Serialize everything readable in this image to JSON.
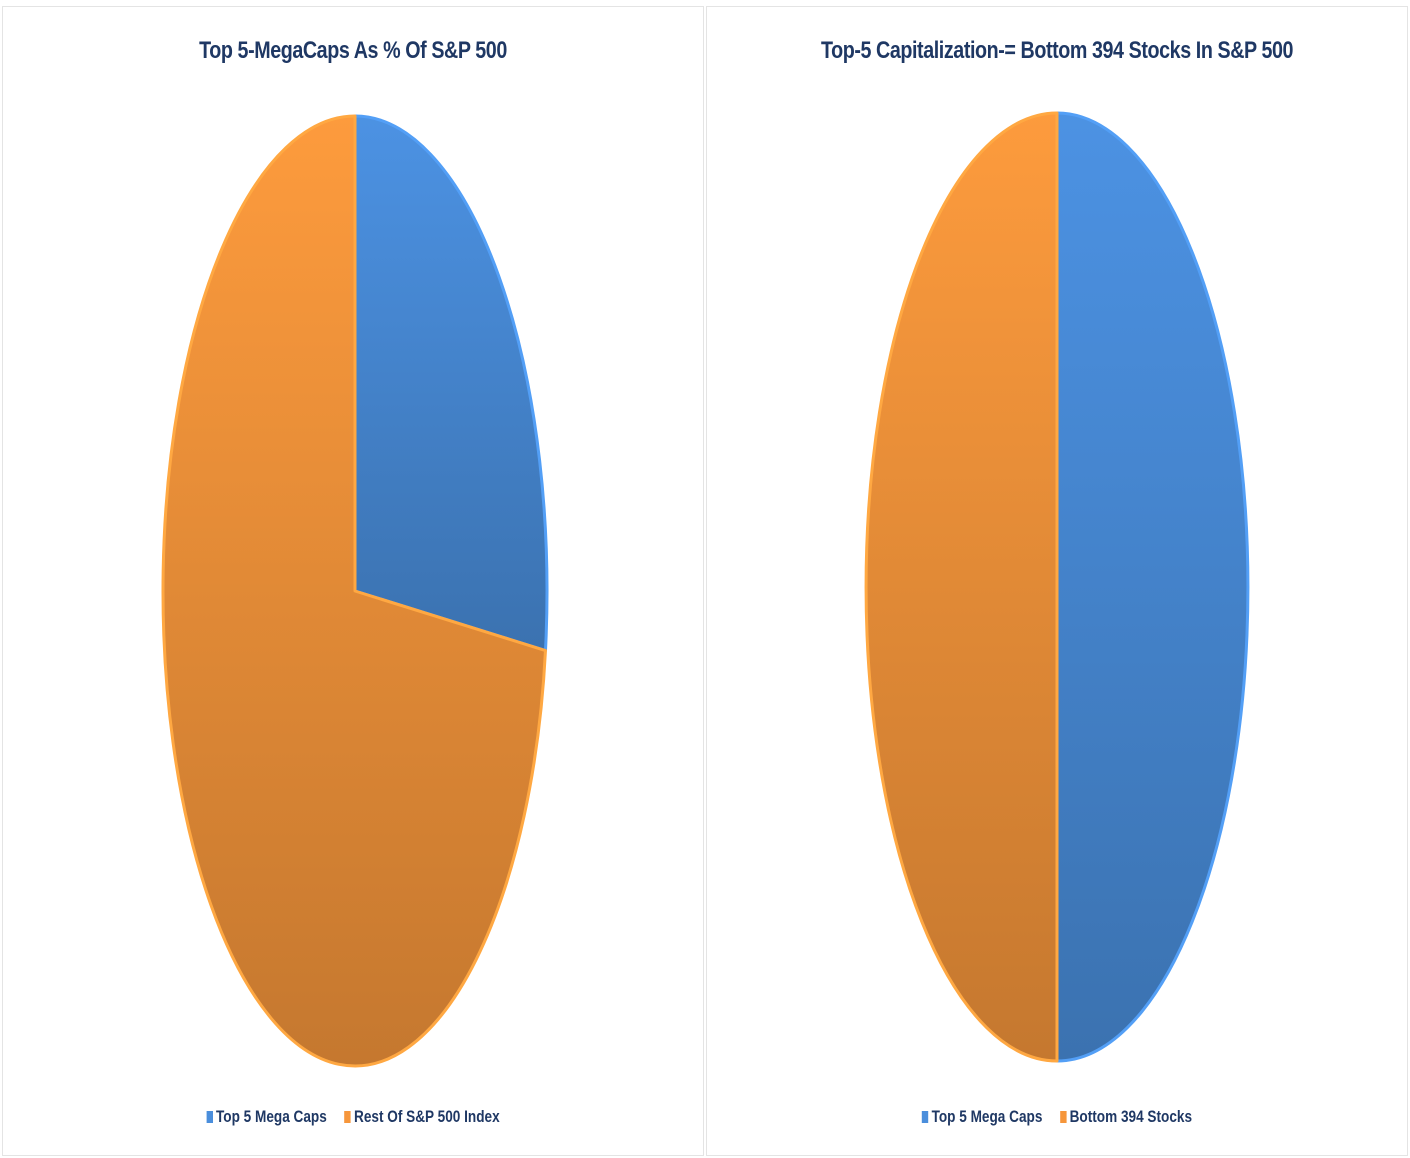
{
  "chart_data": [
    {
      "type": "pie",
      "title": "Top 5-MegaCaps As % Of S&P 500",
      "series": [
        {
          "name": "Top 5 Mega Caps",
          "value": 27,
          "color": "#4a8edc"
        },
        {
          "name": "Rest Of S&P 500 Index",
          "value": 73,
          "color": "#f6963b"
        }
      ],
      "legend_position": "bottom"
    },
    {
      "type": "pie",
      "title": "Top-5 Capitalization-= Bottom 394 Stocks In S&P 500",
      "series": [
        {
          "name": "Top 5 Mega Caps",
          "value": 50,
          "color": "#4a8edc"
        },
        {
          "name": "Bottom 394 Stocks",
          "value": 50,
          "color": "#f6963b"
        }
      ],
      "legend_position": "bottom"
    }
  ]
}
